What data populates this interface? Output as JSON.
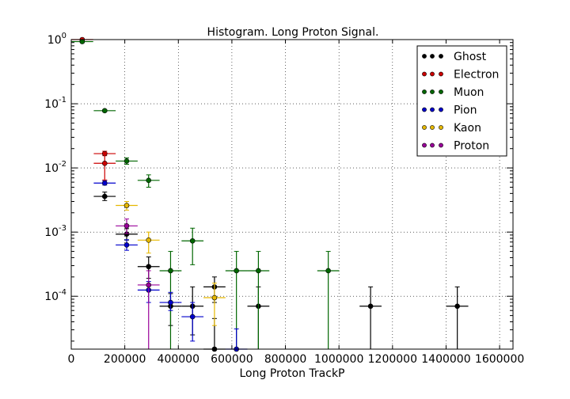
{
  "chart_data": {
    "type": "scatter",
    "title": "Histogram. Long Proton Signal.",
    "xlabel": "Long Proton TrackP",
    "ylabel": "",
    "xlim": [
      0,
      1650000
    ],
    "ylim": [
      1.5e-05,
      1.0
    ],
    "yscale": "log",
    "grid": true,
    "legend_position": "top-right",
    "x_ticks": [
      0,
      200000,
      400000,
      600000,
      800000,
      1000000,
      1200000,
      1400000,
      1600000
    ],
    "x_tick_labels": [
      "0",
      "200000",
      "400000",
      "600000",
      "800000",
      "1000000",
      "1200000",
      "1400000",
      "1600000"
    ],
    "y_ticks": [
      0.0001,
      0.001,
      0.01,
      0.1,
      1
    ],
    "y_tick_labels": [
      {
        "base": "10",
        "exp": "-4"
      },
      {
        "base": "10",
        "exp": "-3"
      },
      {
        "base": "10",
        "exp": "-2"
      },
      {
        "base": "10",
        "exp": "-1"
      },
      {
        "base": "10",
        "exp": "0"
      }
    ],
    "x_half_width": 41000,
    "series": [
      {
        "name": "Ghost",
        "color": "#000000",
        "points": [
          {
            "x": 125000,
            "y": 0.0036,
            "ylo": 0.0031,
            "yhi": 0.0042
          },
          {
            "x": 207000,
            "y": 0.00093,
            "ylo": 0.00075,
            "yhi": 0.00113
          },
          {
            "x": 289000,
            "y": 0.00029,
            "ylo": 0.00019,
            "yhi": 0.00041
          },
          {
            "x": 371000,
            "y": 7e-05,
            "ylo": 3.5e-05,
            "yhi": 0.00011
          },
          {
            "x": 453000,
            "y": 7e-05,
            "ylo": 2.5e-05,
            "yhi": 0.00014
          },
          {
            "x": 535000,
            "y": 0.00014,
            "ylo": 8e-05,
            "yhi": 0.0002
          },
          {
            "x": 535000,
            "y": 1.5e-05,
            "ylo": 1.5e-05,
            "yhi": 4.5e-05
          },
          {
            "x": 699000,
            "y": 7e-05,
            "ylo": 1.5e-05,
            "yhi": 0.00014
          },
          {
            "x": 1118000,
            "y": 7e-05,
            "ylo": 1.5e-05,
            "yhi": 0.00014
          },
          {
            "x": 1442000,
            "y": 7e-05,
            "ylo": 1.5e-05,
            "yhi": 0.00014
          }
        ]
      },
      {
        "name": "Electron",
        "color": "#cc0000",
        "points": [
          {
            "x": 41000,
            "y": 1.0,
            "ylo": 0.97,
            "yhi": 1.03
          },
          {
            "x": 125000,
            "y": 0.0167,
            "ylo": 0.0155,
            "yhi": 0.0182
          },
          {
            "x": 125000,
            "y": 0.0118,
            "ylo": 0.0065,
            "yhi": 0.0175
          }
        ]
      },
      {
        "name": "Muon",
        "color": "#006600",
        "points": [
          {
            "x": 41000,
            "y": 0.93,
            "ylo": 0.9,
            "yhi": 0.96
          },
          {
            "x": 125000,
            "y": 0.078,
            "ylo": 0.075,
            "yhi": 0.081
          },
          {
            "x": 207000,
            "y": 0.0128,
            "ylo": 0.0114,
            "yhi": 0.0143
          },
          {
            "x": 289000,
            "y": 0.0064,
            "ylo": 0.005,
            "yhi": 0.0078
          },
          {
            "x": 371000,
            "y": 0.00025,
            "ylo": 1.5e-05,
            "yhi": 0.0005
          },
          {
            "x": 453000,
            "y": 0.00073,
            "ylo": 0.00031,
            "yhi": 0.00115
          },
          {
            "x": 617000,
            "y": 0.00025,
            "ylo": 1.5e-05,
            "yhi": 0.0005
          },
          {
            "x": 699000,
            "y": 0.00025,
            "ylo": 1.5e-05,
            "yhi": 0.0005
          },
          {
            "x": 960000,
            "y": 0.00025,
            "ylo": 1.5e-05,
            "yhi": 0.0005
          }
        ]
      },
      {
        "name": "Pion",
        "color": "#0000cc",
        "points": [
          {
            "x": 125000,
            "y": 0.0058,
            "ylo": 0.0054,
            "yhi": 0.0063
          },
          {
            "x": 207000,
            "y": 0.00063,
            "ylo": 0.00052,
            "yhi": 0.00076
          },
          {
            "x": 289000,
            "y": 0.000125,
            "ylo": 8e-05,
            "yhi": 0.00017
          },
          {
            "x": 371000,
            "y": 8e-05,
            "ylo": 6e-05,
            "yhi": 0.000115
          },
          {
            "x": 453000,
            "y": 4.8e-05,
            "ylo": 2e-05,
            "yhi": 8e-05
          },
          {
            "x": 617000,
            "y": 1.5e-05,
            "ylo": 1.5e-05,
            "yhi": 3.1e-05
          }
        ]
      },
      {
        "name": "Kaon",
        "color": "#e6b800",
        "points": [
          {
            "x": 207000,
            "y": 0.0026,
            "ylo": 0.0022,
            "yhi": 0.003
          },
          {
            "x": 289000,
            "y": 0.00075,
            "ylo": 0.00047,
            "yhi": 0.001
          },
          {
            "x": 535000,
            "y": 9.5e-05,
            "ylo": 3.5e-05,
            "yhi": 0.00016
          }
        ]
      },
      {
        "name": "Proton",
        "color": "#990099",
        "points": [
          {
            "x": 207000,
            "y": 0.00125,
            "ylo": 0.00095,
            "yhi": 0.0016
          },
          {
            "x": 289000,
            "y": 0.00015,
            "ylo": 1.5e-05,
            "yhi": 0.00025
          }
        ]
      }
    ]
  }
}
